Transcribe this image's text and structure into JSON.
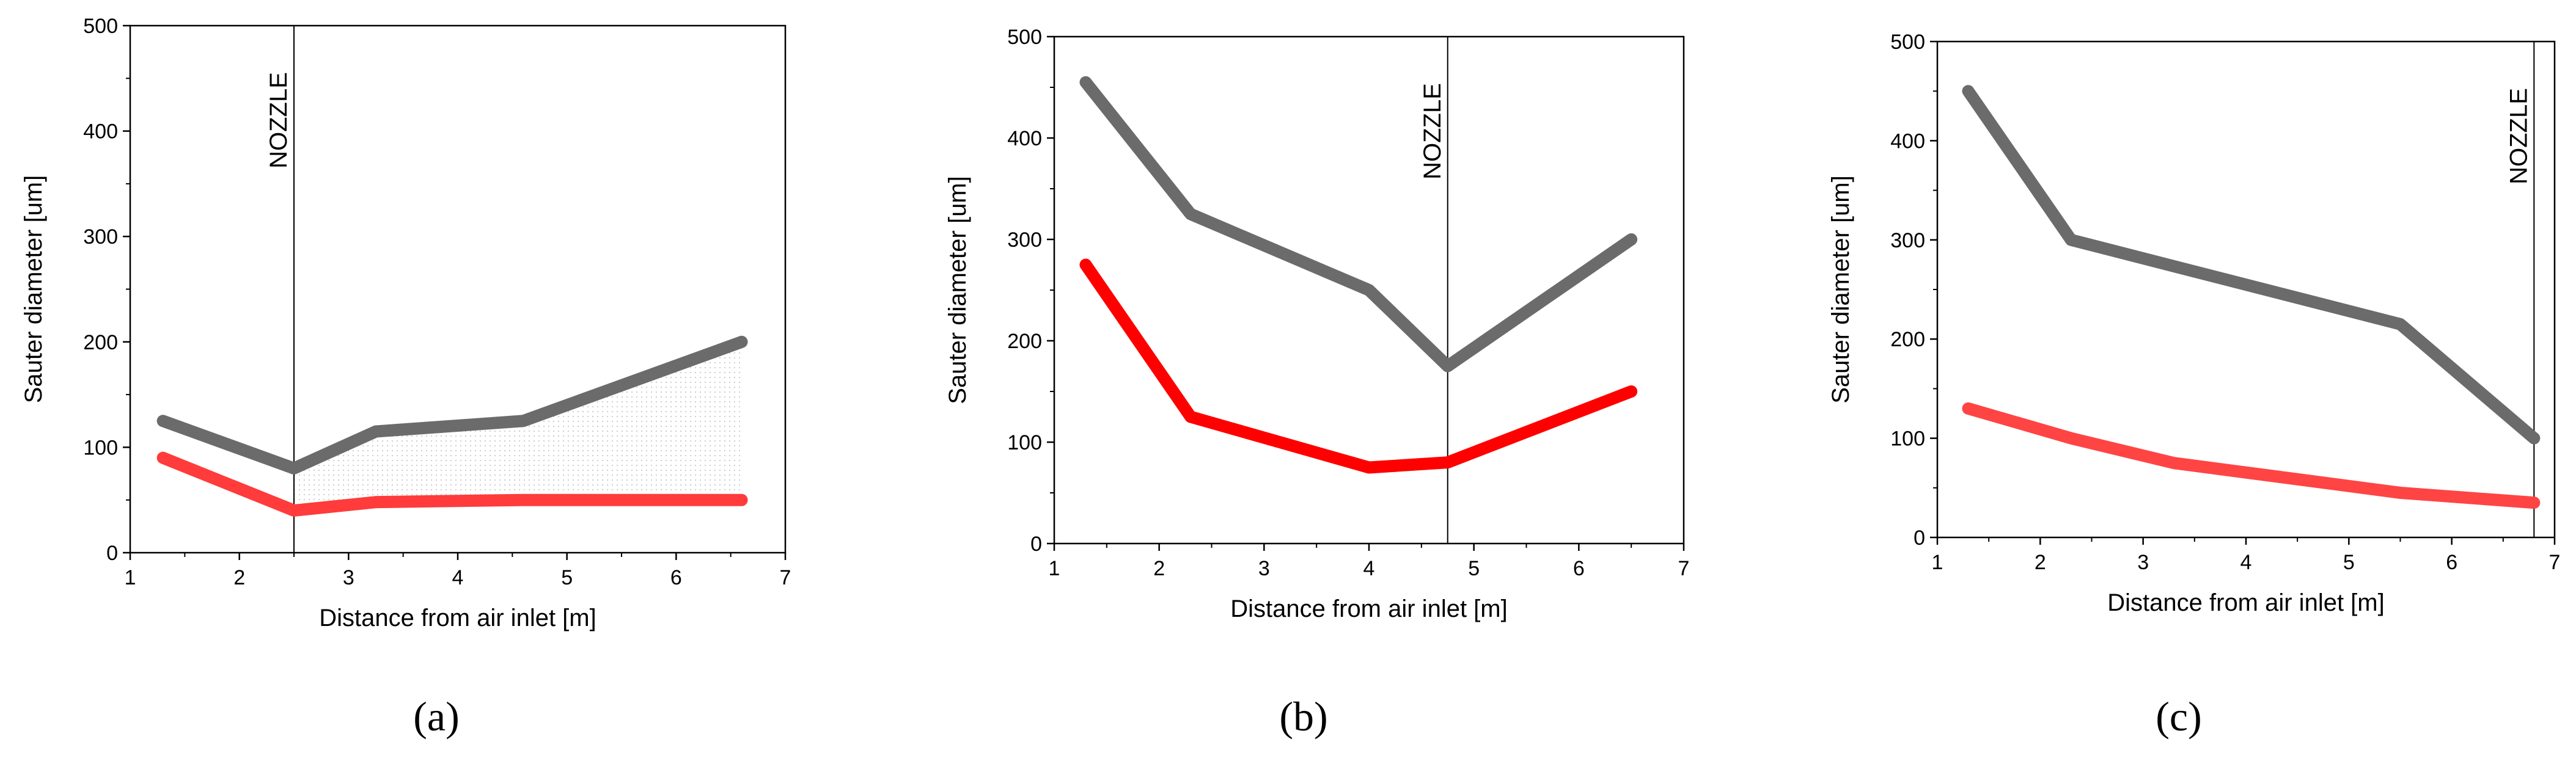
{
  "chart_data": [
    {
      "type": "line",
      "panel": "a",
      "xlabel": "Distance from air inlet [m]",
      "ylabel": "Sauter diameter [um]",
      "xlim": [
        1,
        7
      ],
      "ylim": [
        0,
        500
      ],
      "xticks": [
        1,
        2,
        3,
        4,
        5,
        6,
        7
      ],
      "yticks": [
        0,
        100,
        200,
        300,
        400,
        500
      ],
      "annotation": {
        "text": "NOZZLE",
        "x": 2.5
      },
      "shaded_between_series": true,
      "series": [
        {
          "name": "upper",
          "color": "#6b6b6b",
          "x": [
            1.3,
            2.5,
            3.25,
            4.6,
            6.6
          ],
          "y": [
            125,
            80,
            115,
            125,
            200
          ]
        },
        {
          "name": "lower",
          "color": "#ff3b3b",
          "x": [
            1.3,
            2.5,
            3.25,
            4.6,
            6.6
          ],
          "y": [
            90,
            40,
            48,
            50,
            50
          ]
        }
      ]
    },
    {
      "type": "line",
      "panel": "b",
      "xlabel": "Distance from air inlet [m]",
      "ylabel": "Sauter diameter [um]",
      "xlim": [
        1,
        7
      ],
      "ylim": [
        0,
        500
      ],
      "xticks": [
        1,
        2,
        3,
        4,
        5,
        6,
        7
      ],
      "yticks": [
        0,
        100,
        200,
        300,
        400,
        500
      ],
      "annotation": {
        "text": "NOZZLE",
        "x": 4.75
      },
      "shaded_between_series": false,
      "series": [
        {
          "name": "upper",
          "color": "#6b6b6b",
          "x": [
            1.3,
            2.3,
            4.0,
            4.75,
            6.5
          ],
          "y": [
            455,
            325,
            250,
            175,
            300
          ]
        },
        {
          "name": "lower",
          "color": "#ff0000",
          "x": [
            1.3,
            2.3,
            4.0,
            4.75,
            6.5
          ],
          "y": [
            275,
            125,
            75,
            80,
            150
          ]
        }
      ]
    },
    {
      "type": "line",
      "panel": "c",
      "xlabel": "Distance from air inlet [m]",
      "ylabel": "Sauter diameter [um]",
      "xlim": [
        1,
        7
      ],
      "ylim": [
        0,
        500
      ],
      "xticks": [
        1,
        2,
        3,
        4,
        5,
        6,
        7
      ],
      "yticks": [
        0,
        100,
        200,
        300,
        400,
        500
      ],
      "annotation": {
        "text": "NOZZLE",
        "x": 6.8
      },
      "shaded_between_series": false,
      "series": [
        {
          "name": "upper",
          "color": "#6b6b6b",
          "x": [
            1.3,
            2.3,
            5.5,
            6.8
          ],
          "y": [
            450,
            300,
            215,
            100
          ]
        },
        {
          "name": "lower",
          "color": "#ff4444",
          "x": [
            1.3,
            2.3,
            3.3,
            5.5,
            6.8
          ],
          "y": [
            130,
            100,
            75,
            45,
            35
          ]
        }
      ]
    }
  ],
  "panel_labels": [
    "(a)",
    "(b)",
    "(c)"
  ]
}
